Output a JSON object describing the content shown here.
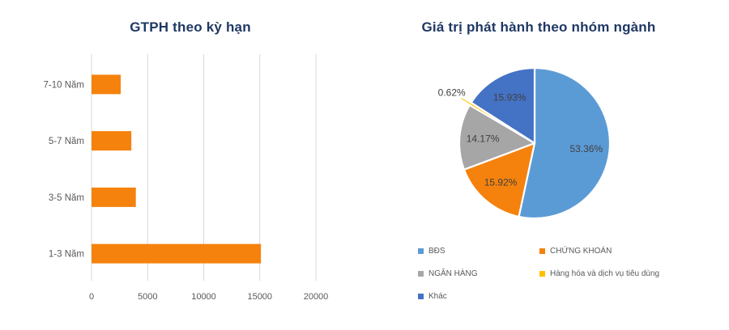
{
  "page": {
    "background": "#FFFFFF"
  },
  "chart_data": [
    {
      "type": "bar",
      "orientation": "horizontal",
      "title": "GTPH theo kỳ hạn",
      "categories": [
        "7-10 Năm",
        "5-7 Năm",
        "3-5 Năm",
        "1-3 Năm"
      ],
      "values": [
        2600,
        3550,
        3950,
        15100
      ],
      "xlabel": "",
      "ylabel": "",
      "xlim": [
        0,
        20000
      ],
      "xticks": [
        0,
        5000,
        10000,
        15000,
        20000
      ],
      "xtick_labels": [
        "0",
        "5000",
        "10000",
        "15000",
        "20000"
      ],
      "grid": true,
      "legend_position": "none",
      "bar_color": "#F5820D",
      "title_color": "#1F3864",
      "axis_label_color": "#595959",
      "gridline_color": "#D9D9D9"
    },
    {
      "type": "pie",
      "title": "Giá trị phát hành theo nhóm ngành",
      "labels": [
        "BĐS",
        "CHỨNG KHOÁN",
        "NGÂN HÀNG",
        "Hàng hóa và dịch vụ tiêu dùng",
        "Khác"
      ],
      "values": [
        53.36,
        15.92,
        14.17,
        0.62,
        15.93
      ],
      "value_labels": [
        "53.36%",
        "15.92%",
        "14.17%",
        "0.62%",
        "15.93%"
      ],
      "colors": [
        "#5B9BD5",
        "#F5820D",
        "#A6A6A6",
        "#FFC000",
        "#4472C4"
      ],
      "start_angle_deg": 0,
      "direction": "clockwise",
      "legend_position": "bottom",
      "title_color": "#1F3864",
      "data_label_color": "#404040",
      "legend_text_color": "#595959",
      "slice_border_color": "#FFFFFF"
    }
  ]
}
